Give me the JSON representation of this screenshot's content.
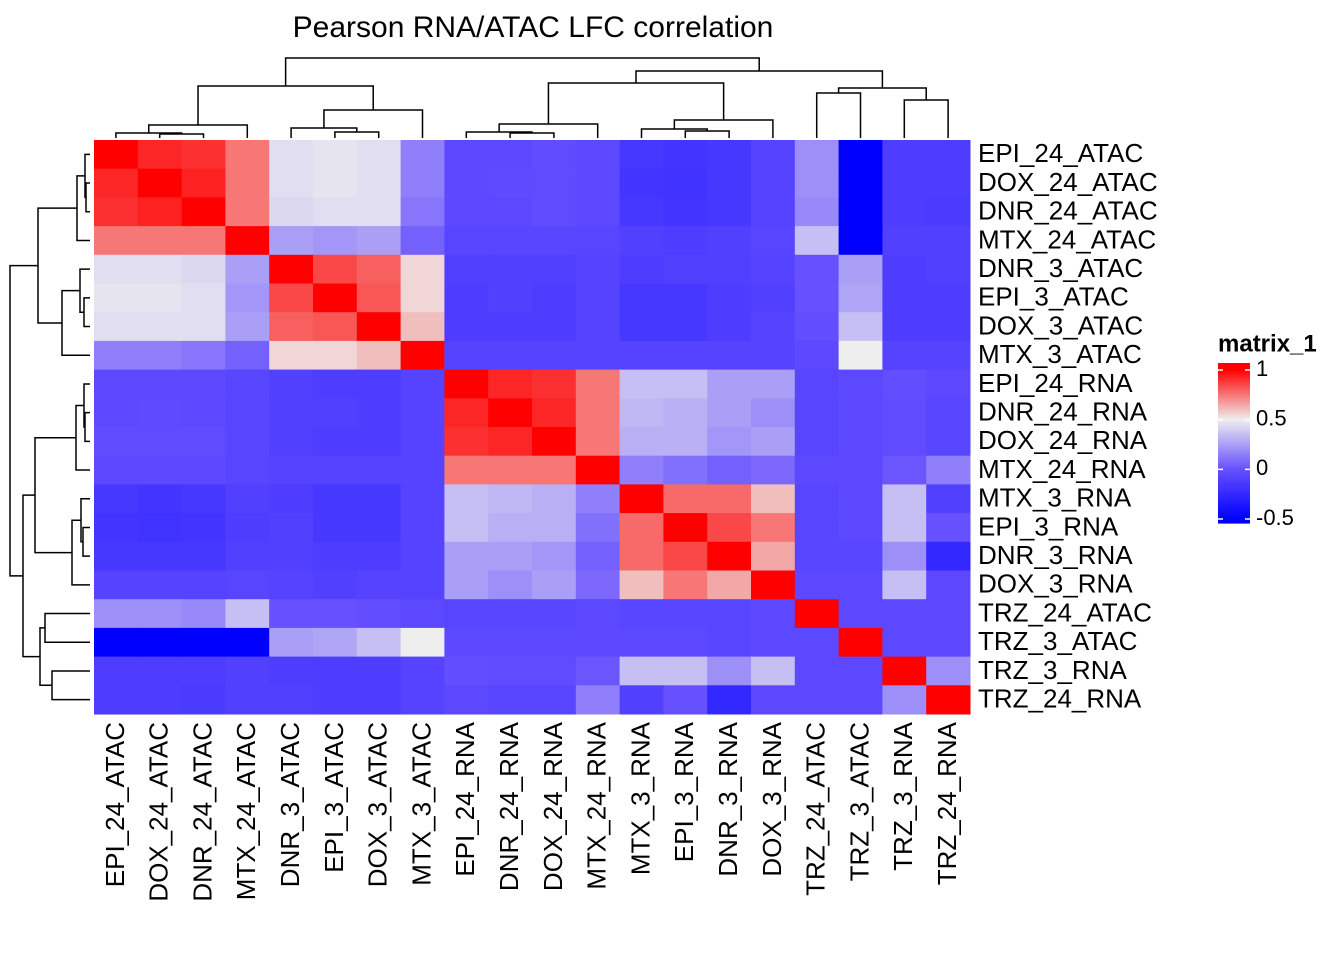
{
  "chart_data": {
    "type": "heatmap",
    "title": "Pearson RNA/ATAC LFC correlation",
    "legend_title": "matrix_1",
    "x_categories": [
      "EPI_24_ATAC",
      "DOX_24_ATAC",
      "DNR_24_ATAC",
      "MTX_24_ATAC",
      "DNR_3_ATAC",
      "EPI_3_ATAC",
      "DOX_3_ATAC",
      "MTX_3_ATAC",
      "EPI_24_RNA",
      "DNR_24_RNA",
      "DOX_24_RNA",
      "MTX_24_RNA",
      "MTX_3_RNA",
      "EPI_3_RNA",
      "DNR_3_RNA",
      "DOX_3_RNA",
      "TRZ_24_ATAC",
      "TRZ_3_ATAC",
      "TRZ_3_RNA",
      "TRZ_24_RNA"
    ],
    "y_categories": [
      "EPI_24_ATAC",
      "DOX_24_ATAC",
      "DNR_24_ATAC",
      "MTX_24_ATAC",
      "DNR_3_ATAC",
      "EPI_3_ATAC",
      "DOX_3_ATAC",
      "MTX_3_ATAC",
      "EPI_24_RNA",
      "DNR_24_RNA",
      "DOX_24_RNA",
      "MTX_24_RNA",
      "MTX_3_RNA",
      "EPI_3_RNA",
      "DNR_3_RNA",
      "DOX_3_RNA",
      "TRZ_24_ATAC",
      "TRZ_3_ATAC",
      "TRZ_3_RNA",
      "TRZ_24_RNA"
    ],
    "values": [
      [
        1,
        0.92,
        0.9,
        0.75,
        0.45,
        0.47,
        0.45,
        0.15,
        -0.05,
        -0.05,
        -0.03,
        -0.05,
        -0.15,
        -0.17,
        -0.15,
        -0.08,
        0.2,
        -0.5,
        -0.12,
        -0.12
      ],
      [
        0.92,
        1,
        0.93,
        0.75,
        0.45,
        0.47,
        0.45,
        0.15,
        -0.05,
        -0.04,
        -0.03,
        -0.05,
        -0.17,
        -0.18,
        -0.15,
        -0.08,
        0.2,
        -0.5,
        -0.12,
        -0.12
      ],
      [
        0.9,
        0.93,
        1,
        0.75,
        0.43,
        0.45,
        0.45,
        0.12,
        -0.05,
        -0.05,
        -0.03,
        -0.05,
        -0.15,
        -0.17,
        -0.15,
        -0.08,
        0.18,
        -0.5,
        -0.12,
        -0.13
      ],
      [
        0.75,
        0.75,
        0.75,
        1,
        0.25,
        0.22,
        0.25,
        0.05,
        -0.07,
        -0.07,
        -0.07,
        -0.07,
        -0.1,
        -0.12,
        -0.1,
        -0.07,
        0.35,
        -0.5,
        -0.1,
        -0.1
      ],
      [
        0.45,
        0.45,
        0.43,
        0.25,
        1,
        0.85,
        0.8,
        0.55,
        -0.1,
        -0.1,
        -0.1,
        -0.08,
        -0.12,
        -0.1,
        -0.1,
        -0.08,
        0.0,
        0.25,
        -0.12,
        -0.1
      ],
      [
        0.47,
        0.47,
        0.45,
        0.22,
        0.85,
        1,
        0.82,
        0.55,
        -0.12,
        -0.1,
        -0.12,
        -0.08,
        -0.15,
        -0.15,
        -0.12,
        -0.1,
        0.0,
        0.27,
        -0.12,
        -0.12
      ],
      [
        0.45,
        0.45,
        0.45,
        0.25,
        0.8,
        0.82,
        1,
        0.6,
        -0.12,
        -0.12,
        -0.12,
        -0.08,
        -0.15,
        -0.15,
        -0.12,
        -0.08,
        -0.02,
        0.35,
        -0.12,
        -0.12
      ],
      [
        0.15,
        0.15,
        0.12,
        0.05,
        0.55,
        0.55,
        0.6,
        1,
        -0.08,
        -0.08,
        -0.08,
        -0.08,
        -0.08,
        -0.08,
        -0.08,
        -0.08,
        -0.05,
        0.5,
        -0.08,
        -0.08
      ],
      [
        -0.05,
        -0.05,
        -0.05,
        -0.07,
        -0.1,
        -0.12,
        -0.12,
        -0.08,
        1,
        0.92,
        0.9,
        0.75,
        0.35,
        0.35,
        0.25,
        0.25,
        -0.07,
        -0.05,
        -0.02,
        -0.05
      ],
      [
        -0.05,
        -0.04,
        -0.05,
        -0.07,
        -0.1,
        -0.1,
        -0.12,
        -0.08,
        0.92,
        1,
        0.92,
        0.75,
        0.33,
        0.3,
        0.25,
        0.2,
        -0.07,
        -0.05,
        -0.03,
        -0.07
      ],
      [
        -0.03,
        -0.03,
        -0.03,
        -0.07,
        -0.1,
        -0.12,
        -0.12,
        -0.08,
        0.9,
        0.92,
        1,
        0.75,
        0.3,
        0.3,
        0.22,
        0.25,
        -0.07,
        -0.05,
        -0.03,
        -0.07
      ],
      [
        -0.05,
        -0.05,
        -0.05,
        -0.07,
        -0.08,
        -0.08,
        -0.08,
        -0.08,
        0.75,
        0.75,
        0.75,
        1,
        0.15,
        0.1,
        0.05,
        0.08,
        -0.05,
        -0.05,
        0.02,
        0.15
      ],
      [
        -0.15,
        -0.17,
        -0.15,
        -0.1,
        -0.12,
        -0.15,
        -0.15,
        -0.08,
        0.35,
        0.33,
        0.3,
        0.15,
        1,
        0.78,
        0.78,
        0.6,
        -0.07,
        -0.05,
        0.35,
        -0.1
      ],
      [
        -0.17,
        -0.18,
        -0.17,
        -0.12,
        -0.1,
        -0.15,
        -0.15,
        -0.08,
        0.35,
        0.3,
        0.3,
        0.1,
        0.78,
        1,
        0.85,
        0.75,
        -0.07,
        -0.05,
        0.35,
        0.0
      ],
      [
        -0.15,
        -0.15,
        -0.15,
        -0.1,
        -0.1,
        -0.12,
        -0.12,
        -0.08,
        0.25,
        0.25,
        0.22,
        0.05,
        0.78,
        0.85,
        1,
        0.65,
        -0.07,
        -0.07,
        0.2,
        -0.25
      ],
      [
        -0.08,
        -0.08,
        -0.08,
        -0.07,
        -0.08,
        -0.1,
        -0.08,
        -0.08,
        0.25,
        0.2,
        0.25,
        0.08,
        0.6,
        0.75,
        0.65,
        1,
        -0.05,
        -0.05,
        0.35,
        -0.05
      ],
      [
        0.2,
        0.2,
        0.18,
        0.35,
        0.0,
        0.0,
        -0.02,
        -0.05,
        -0.07,
        -0.07,
        -0.07,
        -0.05,
        -0.07,
        -0.07,
        -0.07,
        -0.05,
        1,
        -0.05,
        -0.05,
        -0.05
      ],
      [
        -0.5,
        -0.5,
        -0.5,
        -0.5,
        0.25,
        0.27,
        0.35,
        0.5,
        -0.05,
        -0.05,
        -0.05,
        -0.05,
        -0.05,
        -0.05,
        -0.07,
        -0.05,
        -0.05,
        1,
        -0.05,
        -0.05
      ],
      [
        -0.12,
        -0.12,
        -0.12,
        -0.1,
        -0.12,
        -0.12,
        -0.12,
        -0.08,
        -0.02,
        -0.03,
        -0.03,
        0.02,
        0.35,
        0.35,
        0.2,
        0.35,
        -0.05,
        -0.05,
        1,
        0.2
      ],
      [
        -0.12,
        -0.12,
        -0.13,
        -0.1,
        -0.1,
        -0.12,
        -0.12,
        -0.08,
        -0.05,
        -0.07,
        -0.07,
        0.15,
        -0.1,
        0.0,
        -0.25,
        -0.05,
        -0.05,
        -0.05,
        0.2,
        1
      ]
    ],
    "color_stops": [
      -0.5,
      0,
      0.5,
      1
    ],
    "colors": [
      "#0000ff",
      "#6650ff",
      "#eeeeee",
      "#ff0000"
    ],
    "colorbar_ticks": [
      {
        "value": -0.5,
        "label": "-0.5"
      },
      0,
      0.5,
      1
    ]
  }
}
